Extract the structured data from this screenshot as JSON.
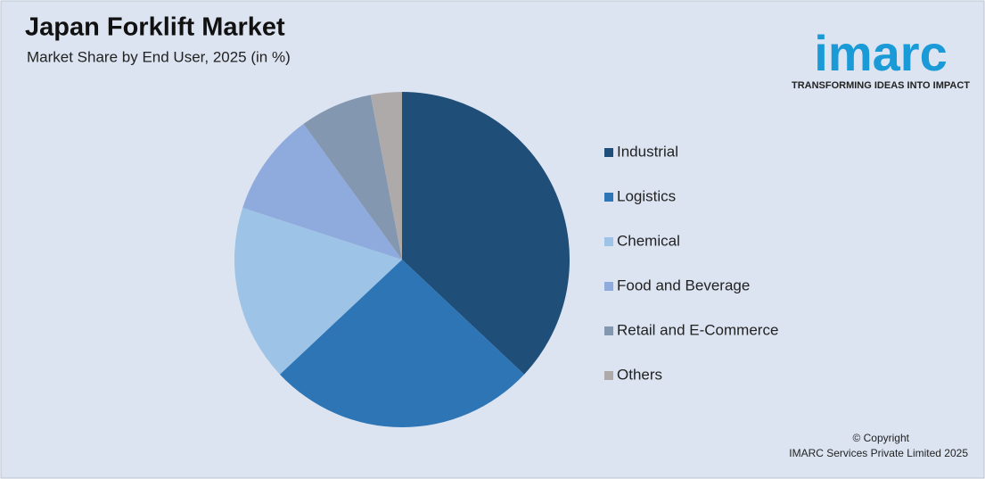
{
  "chart_data": {
    "type": "pie",
    "title": "Japan Forklift Market",
    "subtitle": "Market Share by End User, 2025 (in %)",
    "categories": [
      "Industrial",
      "Logistics",
      "Chemical",
      "Food and Beverage",
      "Retail and E-Commerce",
      "Others"
    ],
    "values": [
      37,
      26,
      17,
      10,
      7,
      3
    ],
    "colors": [
      "#1f4e79",
      "#2e75b6",
      "#9dc3e6",
      "#8faadc",
      "#8497b0",
      "#aeaaaa"
    ]
  },
  "branding": {
    "logo": "imarc",
    "tagline": "TRANSFORMING IDEAS INTO IMPACT",
    "copyright": "© Copyright",
    "owner": "IMARC Services Private Limited 2025"
  }
}
